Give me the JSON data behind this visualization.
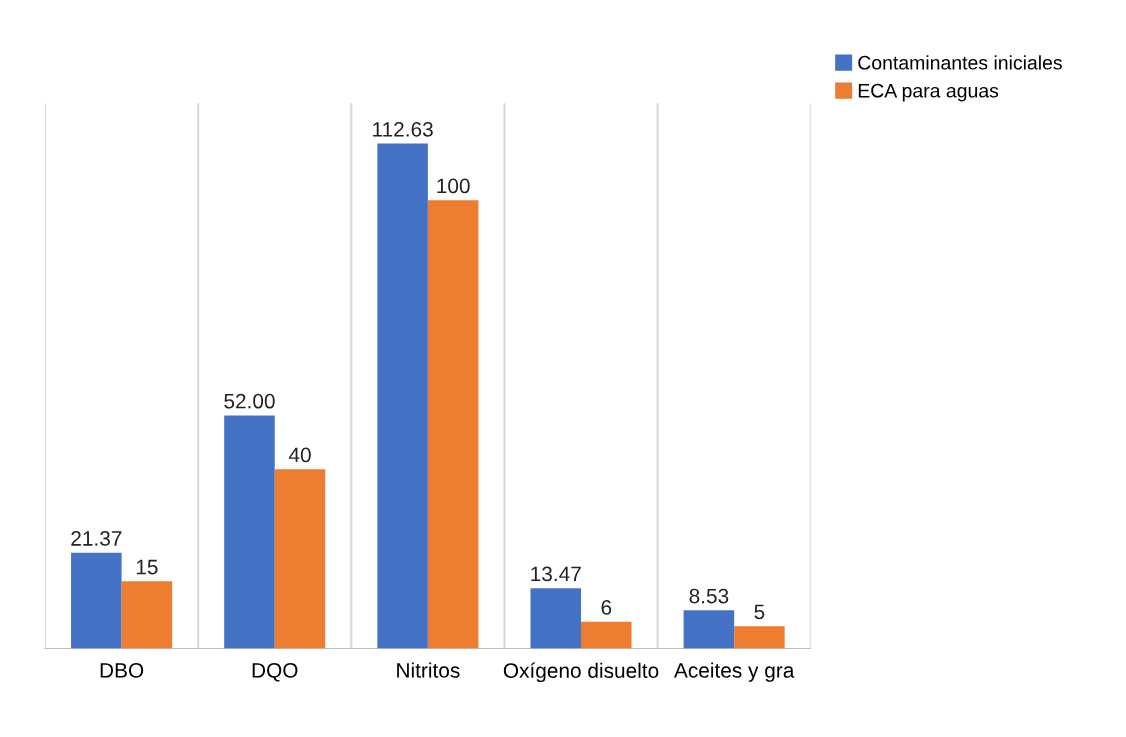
{
  "chart_data": {
    "type": "bar",
    "categories": [
      "DBO",
      "DQO",
      "Nitritos",
      "Oxígeno disuelto",
      "Aceites y gra"
    ],
    "series": [
      {
        "name": "Contaminantes iniciales",
        "color": "#4472c4",
        "values": [
          21.37,
          52.0,
          112.63,
          13.47,
          8.53
        ],
        "value_labels": [
          "21.37",
          "52.00",
          "112.63",
          "13.47",
          "8.53"
        ]
      },
      {
        "name": "ECA para aguas",
        "color": "#ed7d31",
        "values": [
          15,
          40,
          100,
          6,
          5
        ],
        "value_labels": [
          "15",
          "40",
          "100",
          "6",
          "5"
        ]
      }
    ],
    "grid": "x",
    "legend": "top right",
    "tick_labels": "x"
  }
}
